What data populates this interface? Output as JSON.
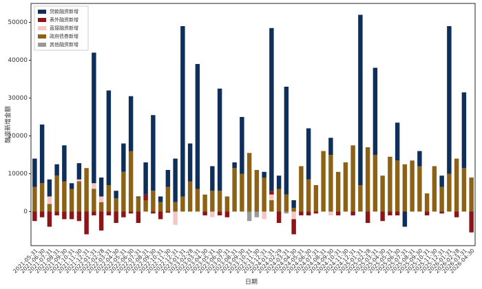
{
  "chart_data": {
    "type": "stacked_bar",
    "x_label": "日期",
    "y_label": "融资新增金额",
    "categories": [
      "2021-05-31",
      "2021-06-30",
      "2021-07-31",
      "2021-08-31",
      "2021-09-30",
      "2021-10-31",
      "2021-11-30",
      "2021-12-31",
      "2022-01-31",
      "2022-02-28",
      "2022-03-31",
      "2022-04-30",
      "2022-05-31",
      "2022-06-30",
      "2022-07-31",
      "2022-08-31",
      "2022-09-30",
      "2022-10-31",
      "2022-11-30",
      "2022-12-31",
      "2023-01-31",
      "2023-02-28",
      "2023-03-31",
      "2023-04-30",
      "2023-05-31",
      "2023-06-30",
      "2023-07-31",
      "2023-08-31",
      "2023-09-30",
      "2023-10-31",
      "2023-11-30",
      "2023-12-31",
      "2024-01-31",
      "2024-02-29",
      "2024-03-31",
      "2024-04-30",
      "2024-05-31",
      "2024-06-30",
      "2024-07-31",
      "2024-08-31",
      "2024-09-30",
      "2024-10-31",
      "2024-11-30",
      "2024-12-31",
      "2025-01-31",
      "2025-02-28",
      "2025-03-31",
      "2025-04-30",
      "2025-05-31",
      "2025-06-30",
      "2025-07-31",
      "2025-08-31",
      "2025-09-30",
      "2025-10-31",
      "2025-11-30",
      "2025-12-31",
      "2026-01-31",
      "2026-02-28",
      "2026-03-31",
      "2026-04-30"
    ],
    "series": [
      {
        "name": "贷款融资新增",
        "color": "#0e2f5a",
        "values": [
          7500,
          15500,
          4500,
          3000,
          9500,
          1500,
          4300,
          0,
          34500,
          5000,
          25000,
          2000,
          7500,
          14500,
          200,
          8500,
          20000,
          1500,
          4500,
          11500,
          45000,
          10000,
          33000,
          0,
          6500,
          27000,
          0,
          1500,
          15000,
          0,
          0,
          1500,
          43000,
          3500,
          28500,
          2000,
          0,
          13500,
          0,
          0,
          4500,
          0,
          0,
          0,
          45000,
          0,
          23000,
          0,
          0,
          10000,
          -4000,
          0,
          4000,
          0,
          0,
          3000,
          39000,
          0,
          20000,
          0
        ]
      },
      {
        "name": "表外融资新增",
        "color": "#8b1518",
        "values": [
          -2500,
          -1500,
          -4000,
          -1000,
          -2000,
          -2000,
          -2500,
          -6000,
          -1000,
          -5000,
          -1000,
          -3000,
          -1500,
          -500,
          -3000,
          1500,
          -500,
          -2000,
          -300,
          0,
          0,
          0,
          0,
          -1000,
          0,
          -1000,
          -1500,
          0,
          0,
          0,
          0,
          0,
          1000,
          -3000,
          0,
          -4000,
          -1000,
          -1000,
          -500,
          0,
          0,
          -1000,
          0,
          -1000,
          0,
          -3000,
          0,
          -2500,
          -1000,
          -1000,
          0,
          0,
          0,
          -1000,
          0,
          -500,
          0,
          -1500,
          0,
          -5500
        ]
      },
      {
        "name": "直接融资新增",
        "color": "#f4c6c6",
        "values": [
          0,
          0,
          2000,
          0,
          0,
          0,
          500,
          0,
          1500,
          1500,
          0,
          0,
          0,
          0,
          0,
          0,
          0,
          0,
          0,
          -3500,
          0,
          0,
          0,
          0,
          -1500,
          0,
          0,
          0,
          0,
          0,
          0,
          -2000,
          1500,
          0,
          0,
          -2000,
          0,
          0,
          0,
          0,
          -1000,
          0,
          0,
          0,
          0,
          0,
          0,
          0,
          0,
          0,
          0,
          0,
          0,
          0,
          0,
          0,
          0,
          0,
          0,
          0
        ]
      },
      {
        "name": "政府债券新增",
        "color": "#8c6217",
        "values": [
          6500,
          7500,
          2000,
          9500,
          8000,
          6000,
          8000,
          11500,
          6000,
          2500,
          7000,
          3500,
          10500,
          16000,
          3800,
          3000,
          5500,
          2500,
          6500,
          2500,
          4000,
          8000,
          6000,
          4500,
          5500,
          5500,
          4000,
          11500,
          10000,
          15500,
          11000,
          9000,
          3000,
          6000,
          4500,
          1000,
          12000,
          8500,
          7000,
          16000,
          15000,
          10500,
          13000,
          17500,
          7000,
          17000,
          15000,
          9500,
          14500,
          13500,
          12500,
          13500,
          12000,
          4800,
          12000,
          6500,
          10000,
          14000,
          11500,
          9000
        ]
      },
      {
        "name": "其他融资新增",
        "color": "#999999",
        "values": [
          0,
          0,
          0,
          0,
          0,
          0,
          0,
          0,
          0,
          0,
          0,
          0,
          0,
          0,
          0,
          0,
          0,
          0,
          0,
          0,
          0,
          0,
          0,
          0,
          0,
          0,
          0,
          0,
          0,
          -2500,
          -1500,
          0,
          0,
          0,
          -500,
          0,
          0,
          0,
          0,
          0,
          0,
          0,
          0,
          0,
          0,
          0,
          0,
          0,
          0,
          0,
          0,
          0,
          0,
          0,
          0,
          0,
          0,
          0,
          0,
          0
        ]
      }
    ],
    "stack_order": [
      3,
      4,
      2,
      1,
      0
    ],
    "ylim": [
      -9000,
      55000
    ],
    "yticks": [
      0,
      10000,
      20000,
      30000,
      40000,
      50000
    ],
    "legend": "upper-left"
  }
}
